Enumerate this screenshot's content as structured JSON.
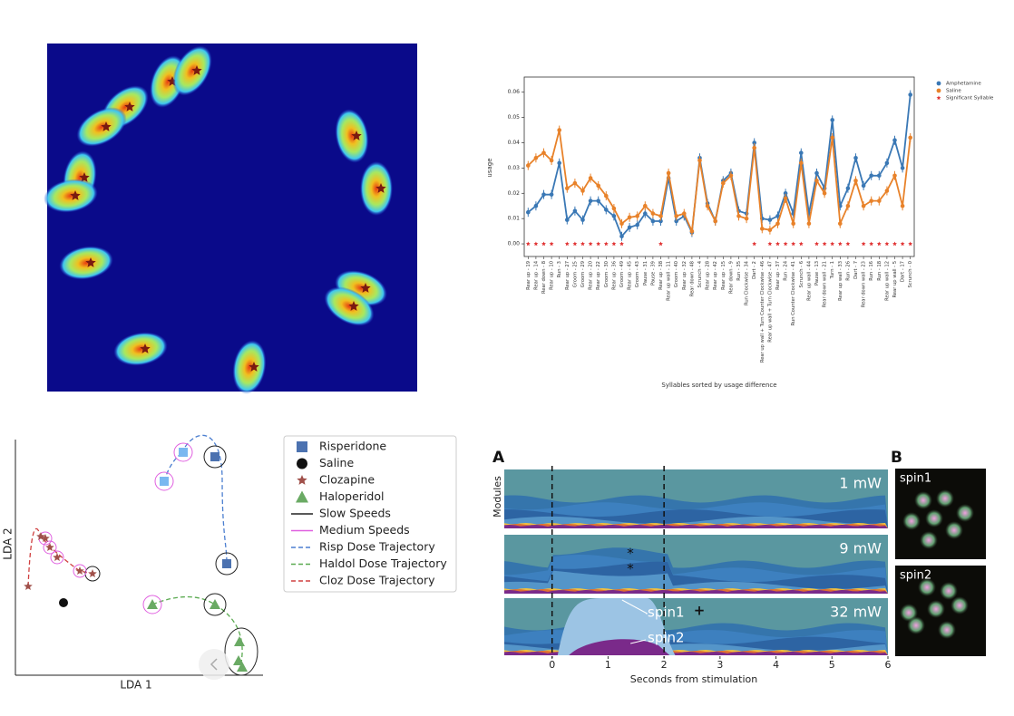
{
  "chart_data": [
    {
      "type": "line",
      "x_label": "Syllables sorted by usage difference",
      "y_label": "usage",
      "categories": [
        "Rear up - 19",
        "Rear up - 14",
        "Rear down - 8",
        "Rear up - 10",
        "Run - 3",
        "Rear up - 27",
        "Groom - 25",
        "Groom - 29",
        "Rear up - 20",
        "Rear up - 22",
        "Groom - 30",
        "Rear up - 36",
        "Groom - 49",
        "Rear up - 45",
        "Groom - 43",
        "Pause - 31",
        "Pause - 39",
        "Rear up - 38",
        "Rear up wall - 11",
        "Groom - 40",
        "Rear up - 32",
        "Rear down - 48",
        "Scrunch - 4",
        "Rear up - 28",
        "Rear up - 42",
        "Rear up - 15",
        "Rear down - 9",
        "Run - 35",
        "Run Clockwise - 34",
        "Dart - 2",
        "Rear up wall + Turn Counter Clockwise - 46",
        "Rear up wall + Turn Clockwise - 47",
        "Rear up - 37",
        "Run - 24",
        "Run Counter Clockwise - 41",
        "Scrunch - 6",
        "Rear up wall - 44",
        "Pause - 13",
        "Rear down wall - 21",
        "Turn - 1",
        "Rear up wall - 33",
        "Run - 26",
        "Dart - 7",
        "Rear down wall - 23",
        "Run - 16",
        "Run - 18",
        "Rear up wall - 12",
        "Rear up wall - 5",
        "Dart - 17",
        "Scrunch - 0"
      ],
      "series": [
        {
          "name": "Amphetamine",
          "color": "#3a78b5",
          "values": [
            0.0125,
            0.015,
            0.0195,
            0.0195,
            0.032,
            0.0095,
            0.013,
            0.0095,
            0.017,
            0.017,
            0.0135,
            0.011,
            0.003,
            0.0065,
            0.0075,
            0.012,
            0.009,
            0.009,
            0.026,
            0.009,
            0.011,
            0.0045,
            0.034,
            0.016,
            0.009,
            0.025,
            0.028,
            0.013,
            0.012,
            0.04,
            0.01,
            0.0095,
            0.011,
            0.02,
            0.012,
            0.036,
            0.012,
            0.028,
            0.022,
            0.049,
            0.015,
            0.022,
            0.034,
            0.023,
            0.027,
            0.027,
            0.032,
            0.041,
            0.03,
            0.059
          ]
        },
        {
          "name": "Saline",
          "color": "#e8822a",
          "values": [
            0.031,
            0.034,
            0.036,
            0.033,
            0.045,
            0.022,
            0.024,
            0.021,
            0.026,
            0.023,
            0.019,
            0.014,
            0.008,
            0.0105,
            0.011,
            0.015,
            0.012,
            0.011,
            0.028,
            0.011,
            0.012,
            0.005,
            0.033,
            0.015,
            0.009,
            0.024,
            0.027,
            0.011,
            0.01,
            0.038,
            0.006,
            0.0055,
            0.008,
            0.018,
            0.008,
            0.032,
            0.008,
            0.025,
            0.02,
            0.042,
            0.008,
            0.015,
            0.025,
            0.015,
            0.017,
            0.017,
            0.021,
            0.027,
            0.015,
            0.042
          ]
        },
        {
          "name": "Significant Syllable",
          "color": "#e03030",
          "marker": "star",
          "values": [
            0,
            0,
            0,
            0,
            null,
            0,
            0,
            0,
            0,
            0,
            0,
            0,
            0,
            null,
            null,
            null,
            null,
            0,
            null,
            null,
            null,
            null,
            null,
            null,
            null,
            null,
            null,
            null,
            null,
            0,
            null,
            0,
            0,
            0,
            0,
            0,
            null,
            0,
            0,
            0,
            0,
            0,
            null,
            0,
            0,
            0,
            0,
            0,
            0,
            0
          ]
        }
      ],
      "ylim": [
        -0.005,
        0.066
      ],
      "yticks": [
        {
          "value": 0,
          "label": "0.00"
        },
        {
          "value": 0.01,
          "label": "0.01"
        },
        {
          "value": 0.02,
          "label": "0.02"
        },
        {
          "value": 0.03,
          "label": "0.03"
        },
        {
          "value": 0.04,
          "label": "0.04"
        },
        {
          "value": 0.05,
          "label": "0.05"
        },
        {
          "value": 0.06,
          "label": "0.06"
        }
      ],
      "legend": "upper right"
    },
    {
      "type": "stream",
      "panel_label": "A",
      "y_label": "Modules",
      "x_label": "Seconds from stimulation",
      "xlim": [
        -1,
        6
      ],
      "xticks": [
        0,
        1,
        2,
        3,
        4,
        5,
        6
      ],
      "stimulation": [
        0,
        2
      ],
      "rows": [
        {
          "label": "1 mW"
        },
        {
          "label": "9 mW",
          "annotations": [
            "*",
            "*"
          ]
        },
        {
          "label": "32 mW",
          "annotations": [
            "spin1",
            "spin2",
            "+"
          ]
        }
      ]
    }
  ],
  "lda_panel": {
    "x_label": "LDA 1",
    "y_label": "LDA 2",
    "legend": [
      {
        "label": "Risperidone",
        "marker": "square",
        "color": "#4c72b0"
      },
      {
        "label": "Saline",
        "marker": "circle",
        "color": "#111111"
      },
      {
        "label": "Clozapine",
        "marker": "star",
        "color": "#a0504a"
      },
      {
        "label": "Haloperidol",
        "marker": "triangle",
        "color": "#6aaa64"
      },
      {
        "label": "Slow Speeds",
        "marker": "line",
        "color": "#222222"
      },
      {
        "label": "Medium Speeds",
        "marker": "line",
        "color": "#e060e0"
      },
      {
        "label": "Risp Dose Trajectory",
        "marker": "dash",
        "color": "#4c7fd0"
      },
      {
        "label": "Haldol Dose Trajectory",
        "marker": "dash",
        "color": "#5aaa50"
      },
      {
        "label": "Cloz Dose Trajectory",
        "marker": "dash",
        "color": "#d04040"
      }
    ]
  },
  "spin_panel": {
    "label": "B",
    "images": [
      "spin1",
      "spin2"
    ]
  }
}
